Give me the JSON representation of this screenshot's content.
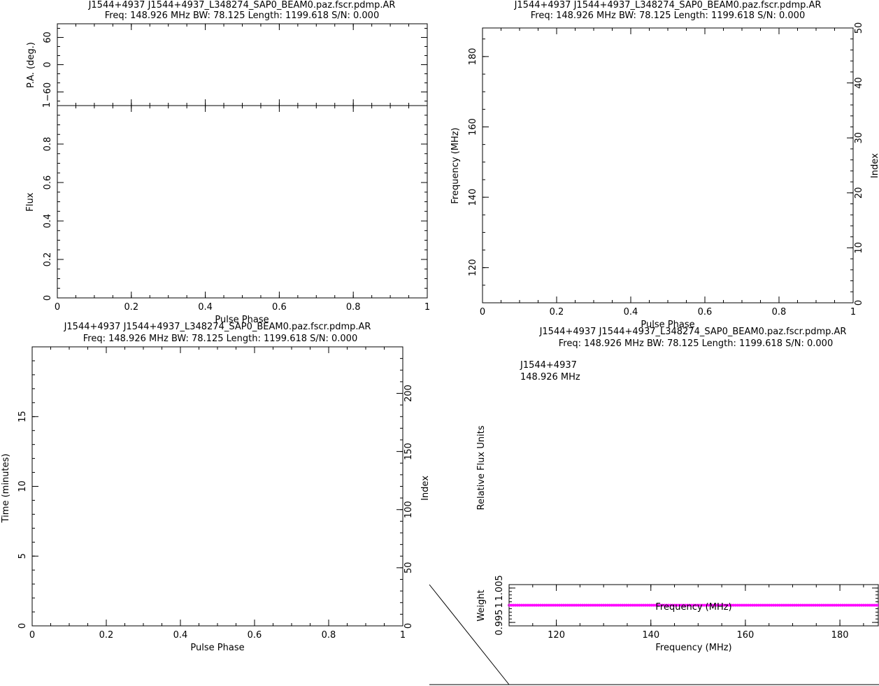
{
  "chart_data": [
    {
      "id": "profile",
      "type": "line",
      "title": "J1544+4937 J1544+4937_L348274_SAP0_BEAM0.paz.fscr.pdmp.AR",
      "subtitle": "Freq: 148.926 MHz BW: 78.125 Length: 1199.618 S/N: 0.000",
      "xlabel": "Pulse Phase",
      "xlim": [
        0,
        1
      ],
      "x_ticks": [
        "0",
        "0.2",
        "0.4",
        "0.6",
        "0.8",
        "1"
      ],
      "pa_panel": {
        "ylabel": "P.A. (deg.)",
        "ylim": [
          -90,
          90
        ],
        "y_ticks": [
          "−60",
          "0",
          "60"
        ],
        "corner_label": "1"
      },
      "flux_panel": {
        "ylabel": "Flux",
        "ylim": [
          0,
          1
        ],
        "y_ticks": [
          "0",
          "0.2",
          "0.4",
          "0.6",
          "0.8"
        ]
      },
      "series": []
    },
    {
      "id": "freq-phase",
      "type": "heatmap",
      "title": "J1544+4937 J1544+4937_L348274_SAP0_BEAM0.paz.fscr.pdmp.AR",
      "subtitle": "Freq: 148.926 MHz BW: 78.125 Length: 1199.618 S/N: 0.000",
      "xlabel": "Pulse Phase",
      "ylabel": "Frequency (MHz)",
      "y2label": "Index",
      "xlim": [
        0,
        1
      ],
      "ylim": [
        110.0,
        188.125
      ],
      "y2lim": [
        0,
        50
      ],
      "x_ticks": [
        "0",
        "0.2",
        "0.4",
        "0.6",
        "0.8",
        "1"
      ],
      "y_ticks": [
        "120",
        "140",
        "160",
        "180"
      ],
      "y2_ticks": [
        "0",
        "10",
        "20",
        "30",
        "40",
        "50"
      ]
    },
    {
      "id": "time-phase",
      "type": "heatmap",
      "title": "J1544+4937 J1544+4937_L348274_SAP0_BEAM0.paz.fscr.pdmp.AR",
      "subtitle": "Freq: 148.926 MHz BW: 78.125 Length: 1199.618 S/N: 0.000",
      "xlabel": "Pulse Phase",
      "ylabel": "Time (minutes)",
      "y2label": "Index",
      "xlim": [
        0,
        1
      ],
      "ylim": [
        0,
        20
      ],
      "y2lim": [
        0,
        240
      ],
      "x_ticks": [
        "0",
        "0.2",
        "0.4",
        "0.6",
        "0.8",
        "1"
      ],
      "y_ticks": [
        "0",
        "5",
        "10",
        "15"
      ],
      "y2_ticks": [
        "0",
        "50",
        "100",
        "150",
        "200"
      ]
    },
    {
      "id": "bandpass",
      "type": "line",
      "title": "J1544+4937 J1544+4937_L348274_SAP0_BEAM0.paz.fscr.pdmp.AR",
      "subtitle": "Freq: 148.926 MHz BW: 78.125 Length: 1199.618 S/N: 0.000",
      "annotation": [
        "J1544+4937",
        "148.926 MHz"
      ],
      "ylabel": "Relative Flux Units",
      "weight_panel": {
        "ylabel": "Weight",
        "xlabel": "Frequency (MHz)",
        "overlay_label": "Frequency (MHz)",
        "xlim": [
          110.0,
          188.125
        ],
        "ylim": [
          0.994,
          1.006
        ],
        "x_ticks": [
          "120",
          "140",
          "160",
          "180"
        ],
        "y_ticks": [
          "0.995",
          "1",
          "1.005"
        ],
        "series": [
          {
            "x": [
              110.0,
              188.125
            ],
            "y": [
              1.0,
              1.0
            ],
            "color": "#ff00ff"
          }
        ]
      }
    }
  ]
}
